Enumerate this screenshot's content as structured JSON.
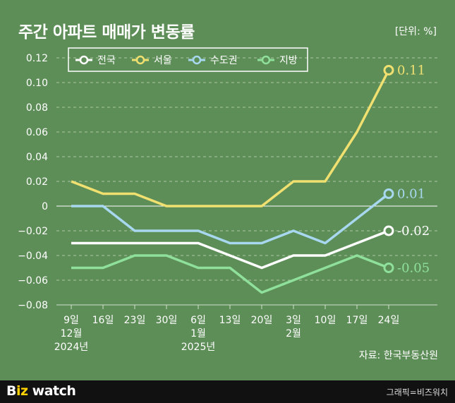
{
  "title": "주간 아파트 매매가 변동률",
  "unit_label": "[단위: %]",
  "source": "자료: 한국부동산원",
  "brand": {
    "prefix": "B",
    "mark": "iz",
    "suffix": " watch"
  },
  "credit": "그래픽=비즈워치",
  "chart_data": {
    "type": "line",
    "categories": [
      "9일",
      "16일",
      "23일",
      "30일",
      "6일",
      "13일",
      "20일",
      "3일",
      "10일",
      "17일",
      "24일"
    ],
    "category_sub": [
      [
        "12월",
        "2024년"
      ],
      [],
      [],
      [],
      [
        "1월",
        "2025년"
      ],
      [],
      [],
      [
        "2월"
      ],
      [],
      [],
      []
    ],
    "y_ticks": [
      0.12,
      0.1,
      0.08,
      0.06,
      0.04,
      0.02,
      0,
      -0.02,
      -0.04,
      -0.06,
      -0.08
    ],
    "y_tick_labels": [
      "0.12",
      "0.10",
      "0.08",
      "0.06",
      "0.04",
      "0.02",
      "0",
      "−0.02",
      "−0.04",
      "−0.06",
      "−0.08"
    ],
    "ylim": [
      -0.08,
      0.12
    ],
    "grid": true,
    "legend_position": "top-left",
    "series": [
      {
        "name": "전국",
        "color": "#ffffff",
        "values": [
          -0.03,
          -0.03,
          -0.03,
          -0.03,
          -0.03,
          -0.04,
          -0.05,
          -0.04,
          -0.04,
          -0.03,
          -0.02
        ],
        "end_label": "-0.02"
      },
      {
        "name": "서울",
        "color": "#f0e070",
        "values": [
          0.02,
          0.01,
          0.01,
          0.0,
          0.0,
          0.0,
          0.0,
          0.02,
          0.02,
          0.06,
          0.11
        ],
        "end_label": "0.11"
      },
      {
        "name": "수도권",
        "color": "#a8d8f0",
        "values": [
          0.0,
          0.0,
          -0.02,
          -0.02,
          -0.02,
          -0.03,
          -0.03,
          -0.02,
          -0.03,
          -0.01,
          0.01
        ],
        "end_label": "0.01"
      },
      {
        "name": "지방",
        "color": "#8ee09a",
        "values": [
          -0.05,
          -0.05,
          -0.04,
          -0.04,
          -0.05,
          -0.05,
          -0.07,
          -0.06,
          -0.05,
          -0.04,
          -0.05
        ],
        "end_label": "-0.05"
      }
    ]
  }
}
